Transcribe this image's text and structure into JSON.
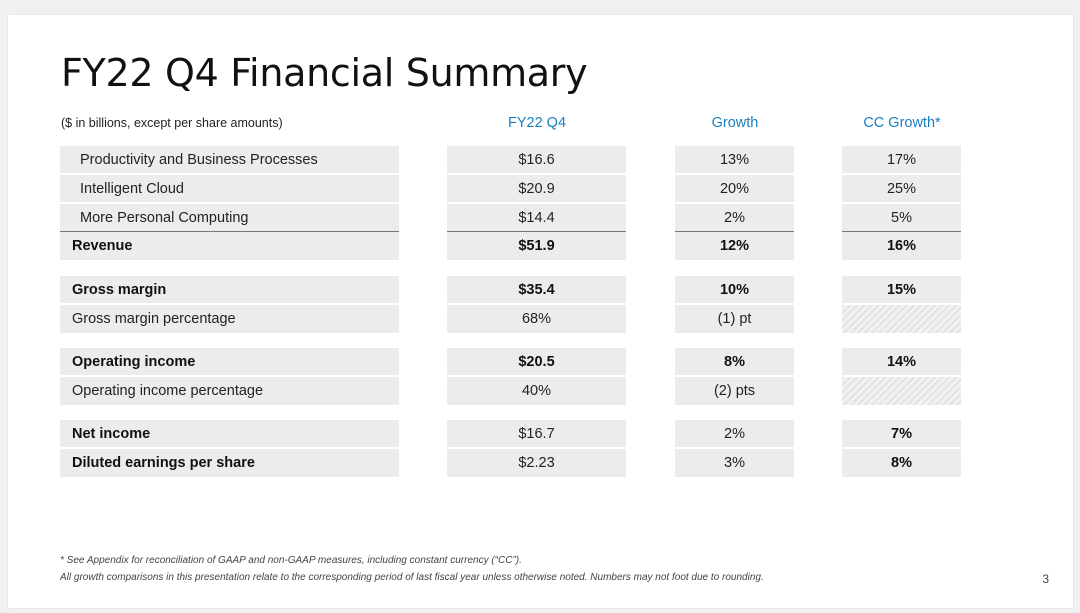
{
  "title": "FY22 Q4 Financial Summary",
  "units_note": "($ in billions, except per share amounts)",
  "columns": [
    "FY22 Q4",
    "Growth",
    "CC Growth*"
  ],
  "rows": [
    {
      "label": "Productivity and Business Processes",
      "value": "$16.6",
      "growth": "13%",
      "cc": "17%"
    },
    {
      "label": "Intelligent Cloud",
      "value": "$20.9",
      "growth": "20%",
      "cc": "25%"
    },
    {
      "label": "More Personal Computing",
      "value": "$14.4",
      "growth": "2%",
      "cc": "5%"
    },
    {
      "label": "Revenue",
      "value": "$51.9",
      "growth": "12%",
      "cc": "16%"
    },
    {
      "label": "Gross margin",
      "value": "$35.4",
      "growth": "10%",
      "cc": "15%"
    },
    {
      "label": "Gross margin percentage",
      "value": "68%",
      "growth": "(1) pt",
      "cc": ""
    },
    {
      "label": "Operating income",
      "value": "$20.5",
      "growth": "8%",
      "cc": "14%"
    },
    {
      "label": "Operating income percentage",
      "value": "40%",
      "growth": "(2) pts",
      "cc": ""
    },
    {
      "label": "Net income",
      "value": "$16.7",
      "growth": "2%",
      "cc": "7%"
    },
    {
      "label": "Diluted earnings per share",
      "value": "$2.23",
      "growth": "3%",
      "cc": "8%"
    }
  ],
  "footnotes": [
    "* See Appendix for reconciliation of GAAP and non-GAAP measures, including constant currency (“CC”).",
    "All growth comparisons in this presentation relate to the corresponding period of last fiscal year unless otherwise noted. Numbers may not foot due to rounding."
  ],
  "page_number": "3",
  "colors": {
    "header_accent": "#1a7fc1",
    "row_fill": "#ececec"
  }
}
